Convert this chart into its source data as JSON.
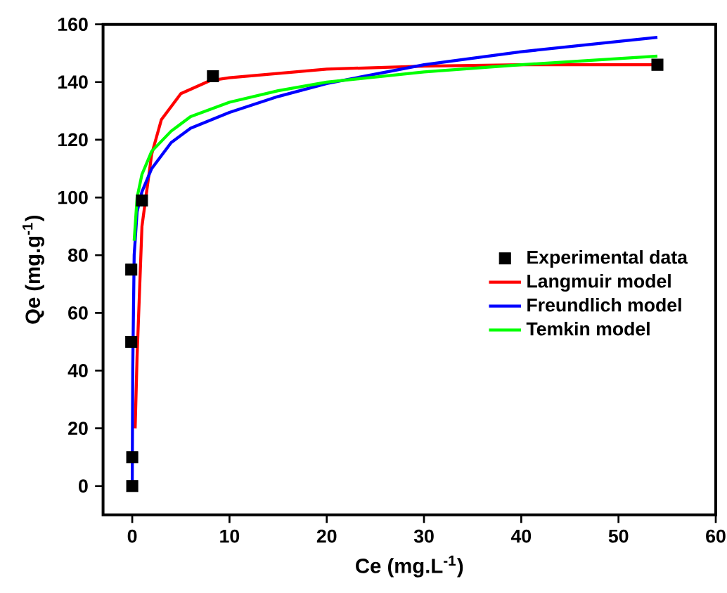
{
  "chart_data": {
    "type": "line",
    "xlabel": "Ce (mg.L$^{-1}$)",
    "ylabel": "Qe (mg.g$^{-1}$)",
    "xlim": [
      -3,
      60
    ],
    "ylim": [
      -10,
      160
    ],
    "xticks": [
      0,
      10,
      20,
      30,
      40,
      50,
      60
    ],
    "yticks": [
      0,
      20,
      40,
      60,
      80,
      100,
      120,
      140,
      160
    ],
    "legend": "right",
    "grid": false,
    "series": [
      {
        "name": "Experimental data",
        "type": "scatter",
        "marker": "square",
        "color": "#000000",
        "x": [
          0,
          0,
          -0.1,
          -0.1,
          1,
          8.3,
          54
        ],
        "values": [
          0,
          10,
          50,
          75,
          99,
          142,
          146
        ]
      },
      {
        "name": "Langmuir model",
        "marker": "none",
        "color": "#ff0000",
        "x": [
          0.3,
          0.5,
          1,
          2,
          3,
          5,
          8,
          10,
          20,
          30,
          40,
          54
        ],
        "values": [
          20,
          45,
          90,
          115,
          127,
          136,
          140.5,
          141.5,
          144.5,
          145.5,
          146,
          146
        ]
      },
      {
        "name": "Freundlich model",
        "marker": "none",
        "color": "#0000ff",
        "x": [
          0,
          0.05,
          0.2,
          0.5,
          1,
          2,
          4,
          6,
          10,
          15,
          20,
          30,
          40,
          54
        ],
        "values": [
          0,
          40,
          80,
          95,
          102,
          110,
          119,
          124,
          129.5,
          135,
          139.5,
          146,
          150.5,
          155.5
        ]
      },
      {
        "name": "Temkin model",
        "marker": "none",
        "color": "#00ff00",
        "x": [
          0.2,
          0.5,
          1,
          2,
          4,
          6,
          10,
          15,
          20,
          30,
          40,
          54
        ],
        "values": [
          85,
          100,
          108,
          116,
          123,
          128,
          133,
          137,
          140,
          143.5,
          146,
          149
        ]
      }
    ]
  }
}
